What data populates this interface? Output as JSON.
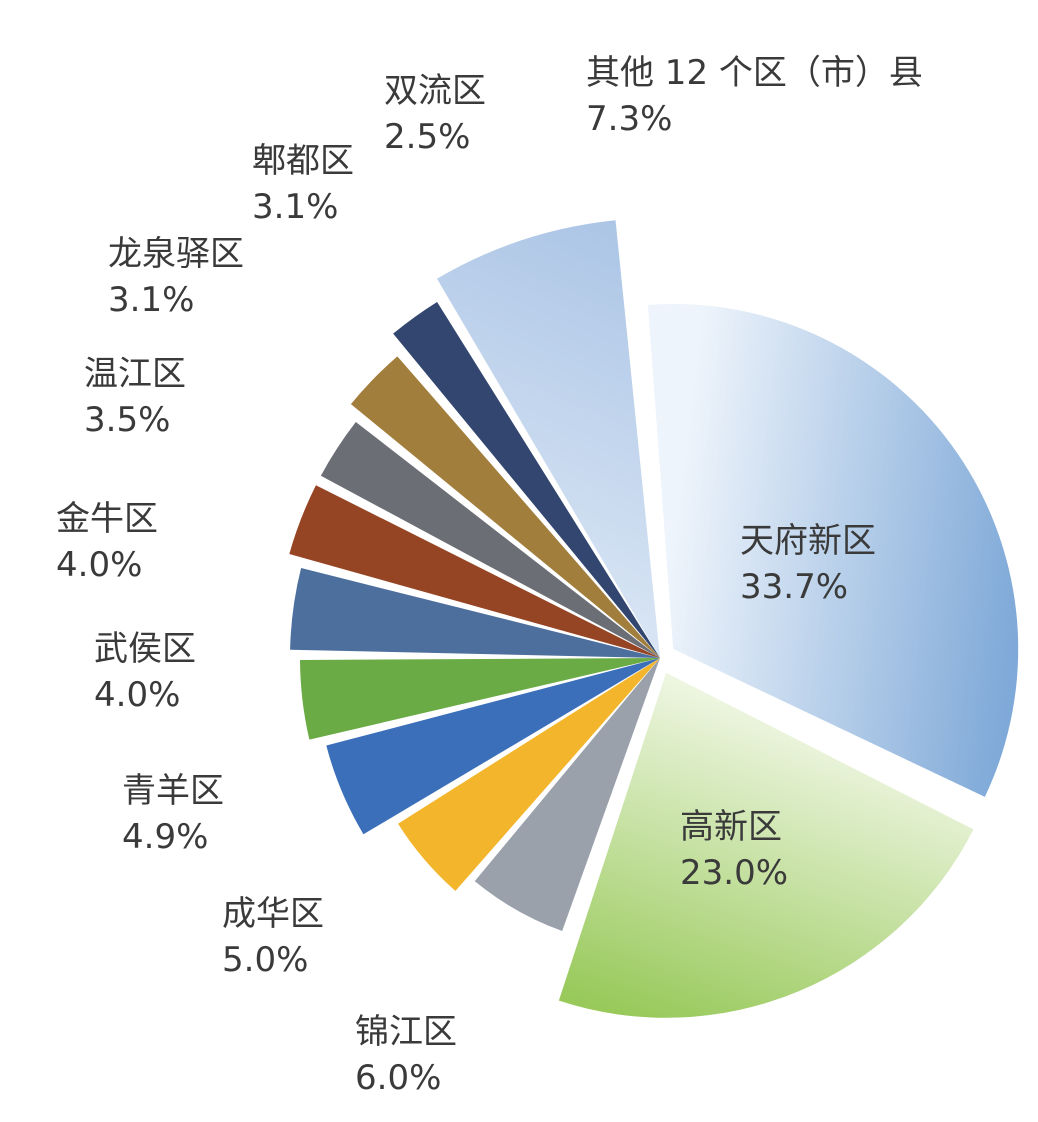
{
  "chart_data": {
    "type": "pie",
    "title": "",
    "slices": [
      {
        "label": "天府新区",
        "value_label": "33.7%",
        "value": 33.7,
        "color": "#7fa9d8",
        "color_light": "#eef4fb"
      },
      {
        "label": "高新区",
        "value_label": "23.0%",
        "value": 23.0,
        "color": "#98c95a",
        "color_light": "#f2f8e8"
      },
      {
        "label": "锦江区",
        "value_label": "6.0%",
        "value": 6.0,
        "color": "#9aa1ab"
      },
      {
        "label": "成华区",
        "value_label": "5.0%",
        "value": 5.0,
        "color": "#f2b52c"
      },
      {
        "label": "青羊区",
        "value_label": "4.9%",
        "value": 4.9,
        "color": "#3b6fba"
      },
      {
        "label": "武侯区",
        "value_label": "4.0%",
        "value": 4.0,
        "color": "#6aab45"
      },
      {
        "label": "金牛区",
        "value_label": "4.0%",
        "value": 4.0,
        "color": "#4c6f9e"
      },
      {
        "label": "温江区",
        "value_label": "3.5%",
        "value": 3.5,
        "color": "#954524"
      },
      {
        "label": "龙泉驿区",
        "value_label": "3.1%",
        "value": 3.1,
        "color": "#6b6e74"
      },
      {
        "label": "郫都区",
        "value_label": "3.1%",
        "value": 3.1,
        "color": "#a27e3c"
      },
      {
        "label": "双流区",
        "value_label": "2.5%",
        "value": 2.5,
        "color": "#32466f"
      },
      {
        "label": "其他 12 个区（市）县",
        "value_label": "7.3%",
        "value": 7.3,
        "color": "#a6c1e4",
        "color_light": "#dbe7f5"
      }
    ]
  }
}
